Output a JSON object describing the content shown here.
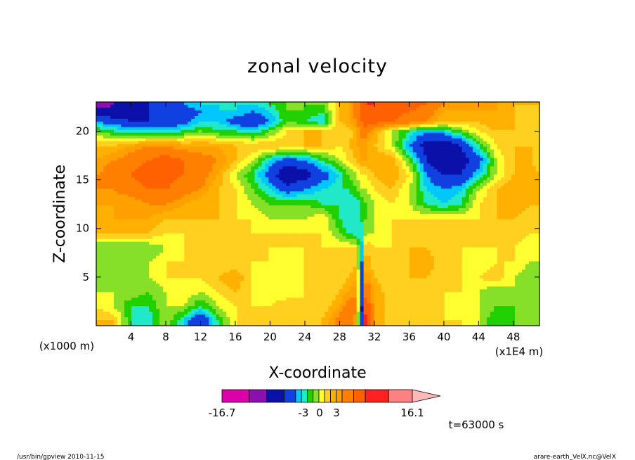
{
  "chart_data": {
    "type": "heatmap",
    "title": "zonal velocity",
    "xlabel": "X-coordinate",
    "ylabel": "Z-coordinate",
    "x_unit_left": "(x1000 m)",
    "x_unit_right": "(x1E4 m)",
    "xlim": [
      0,
      51
    ],
    "ylim": [
      0,
      23
    ],
    "x_ticks": [
      4,
      8,
      12,
      16,
      20,
      24,
      28,
      32,
      36,
      40,
      44,
      48
    ],
    "x_tick_labels": [
      "4",
      "8",
      "12",
      "16",
      "20",
      "24",
      "28",
      "32",
      "36",
      "40",
      "44",
      "48"
    ],
    "y_ticks": [
      5,
      10,
      15,
      20
    ],
    "y_tick_labels": [
      "5",
      "10",
      "15",
      "20"
    ],
    "colorbar": {
      "min_label": "-16.7",
      "max_label": "16.1",
      "mid_labels": [
        "-3",
        "0",
        "3"
      ],
      "levels": [
        -16.7,
        -12,
        -9,
        -6,
        -4,
        -3,
        -2,
        -1,
        0,
        1,
        2,
        3,
        4,
        6,
        8,
        12,
        16.1
      ],
      "colors": [
        "#dd00aa",
        "#8a10b0",
        "#0a10a8",
        "#1040e0",
        "#00c8ff",
        "#20e8c8",
        "#20d000",
        "#86e028",
        "#ffff30",
        "#ffd020",
        "#ffb000",
        "#ffa000",
        "#ff8000",
        "#ff6000",
        "#ff2020",
        "#ff8080"
      ],
      "extension_color": "#ffb8b8"
    },
    "field": {
      "x": [
        0,
        2,
        4,
        6,
        8,
        10,
        12,
        14,
        16,
        18,
        20,
        22,
        24,
        26,
        28,
        29,
        30,
        30.5,
        31,
        32,
        34,
        36,
        38,
        40,
        42,
        44,
        46,
        48,
        50,
        51
      ],
      "z": [
        0.5,
        2,
        3.5,
        5,
        6.5,
        8,
        9.5,
        11,
        12.5,
        14,
        15.5,
        17,
        18.5,
        20,
        21,
        22,
        22.8
      ],
      "u": [
        [
          2,
          2,
          -2,
          -3,
          0,
          -3,
          -6,
          -2,
          1,
          1,
          1,
          1,
          1,
          2,
          5,
          6,
          3,
          -8,
          10,
          3,
          1,
          1,
          2,
          1,
          1,
          0,
          -2,
          -1,
          -1,
          -1
        ],
        [
          1,
          0,
          -2,
          -2,
          0,
          0,
          -2,
          0,
          1,
          1,
          1,
          2,
          1,
          1,
          3,
          5,
          4,
          -8,
          8,
          3,
          1,
          1,
          2,
          1,
          0,
          0,
          -1,
          -1,
          -1,
          -1
        ],
        [
          0,
          0,
          0,
          -1,
          0,
          1,
          0,
          1,
          2,
          1,
          0,
          0,
          1,
          1,
          2,
          3,
          4,
          -6,
          6,
          3,
          1,
          1,
          1,
          1,
          1,
          0,
          -1,
          0,
          -1,
          -1
        ],
        [
          -1,
          -1,
          0,
          0,
          1,
          1,
          1,
          2,
          3,
          1,
          0,
          0,
          1,
          1,
          1,
          2,
          3,
          -6,
          4,
          2,
          1,
          2,
          2,
          1,
          1,
          1,
          2,
          0,
          -1,
          -1
        ],
        [
          -1,
          -1,
          -1,
          0,
          1,
          1,
          1,
          1,
          1,
          1,
          1,
          0,
          1,
          1,
          1,
          1,
          2,
          -5,
          3,
          1,
          1,
          2,
          3,
          1,
          1,
          0,
          1,
          1,
          0,
          0
        ],
        [
          -1,
          -1,
          -1,
          -1,
          0,
          1,
          1,
          1,
          1,
          1,
          1,
          1,
          1,
          1,
          1,
          1,
          1,
          -4,
          2,
          1,
          1,
          2,
          2,
          1,
          1,
          1,
          1,
          1,
          0,
          0
        ],
        [
          2,
          2,
          2,
          2,
          1,
          1,
          1,
          1,
          1,
          1,
          1,
          1,
          1,
          1,
          -1,
          -2,
          -3,
          -3,
          0,
          0,
          1,
          1,
          1,
          1,
          1,
          1,
          1,
          2,
          1,
          1
        ],
        [
          2,
          3,
          3,
          3,
          2,
          2,
          2,
          2,
          1,
          1,
          0,
          0,
          0,
          1,
          -2,
          -3,
          -3,
          -2,
          -1,
          0,
          1,
          1,
          1,
          1,
          1,
          1,
          2,
          2,
          1,
          1
        ],
        [
          3,
          3,
          3,
          4,
          4,
          3,
          2,
          2,
          1,
          0,
          -1,
          -1,
          -1,
          -2,
          -2,
          -3,
          -3,
          -2,
          -1,
          0,
          1,
          0,
          -2,
          -3,
          -2,
          1,
          2,
          3,
          2,
          2
        ],
        [
          4,
          4,
          5,
          6,
          6,
          5,
          4,
          2,
          1,
          -1,
          -3,
          -5,
          -4,
          -3,
          -2,
          -2,
          -1,
          0,
          0,
          1,
          2,
          0,
          -3,
          -4,
          -3,
          0,
          2,
          3,
          3,
          2
        ],
        [
          4,
          5,
          6,
          7,
          7,
          6,
          5,
          3,
          0,
          -2,
          -5,
          -8,
          -7,
          -5,
          -3,
          -1,
          0,
          1,
          1,
          2,
          3,
          1,
          -4,
          -6,
          -6,
          -3,
          0,
          2,
          3,
          2
        ],
        [
          3,
          4,
          5,
          6,
          7,
          6,
          5,
          4,
          2,
          0,
          -3,
          -5,
          -4,
          -2,
          0,
          1,
          2,
          3,
          3,
          3,
          3,
          -1,
          -6,
          -8,
          -7,
          -5,
          0,
          2,
          2,
          1
        ],
        [
          2,
          2,
          3,
          4,
          4,
          3,
          3,
          3,
          2,
          2,
          2,
          2,
          2,
          2,
          1,
          2,
          3,
          3,
          3,
          2,
          0,
          -4,
          -7,
          -8,
          -6,
          -2,
          1,
          2,
          2,
          1
        ],
        [
          -1,
          -2,
          -3,
          -3,
          -3,
          -2,
          -1,
          -2,
          -2,
          -3,
          -1,
          1,
          2,
          2,
          1,
          1,
          3,
          5,
          5,
          3,
          0,
          -2,
          -4,
          -3,
          -1,
          1,
          2,
          2,
          1,
          1
        ],
        [
          -4,
          -5,
          -6,
          -6,
          -6,
          -5,
          -3,
          -3,
          -5,
          -6,
          -4,
          -1,
          -2,
          -3,
          2,
          3,
          4,
          6,
          7,
          7,
          6,
          5,
          4,
          2,
          2,
          2,
          3,
          2,
          1,
          1
        ],
        [
          -7,
          -8,
          -7,
          -6,
          -6,
          -5,
          -4,
          -3,
          -3,
          -4,
          -3,
          -1,
          -1,
          -2,
          2,
          3,
          5,
          6,
          7,
          7,
          7,
          6,
          5,
          3,
          3,
          3,
          3,
          2,
          1,
          1
        ],
        [
          -12,
          -9,
          -7,
          -6,
          -5,
          -4,
          -3,
          -3,
          -3,
          -3,
          -2,
          -1,
          -1,
          -1,
          2,
          3,
          5,
          7,
          8,
          8,
          7,
          7,
          6,
          4,
          3,
          3,
          3,
          2,
          2,
          2
        ]
      ]
    }
  },
  "annotations": {
    "time_label": "t=63000 s",
    "footer_left": "/usr/bin/gpview   2010-11-15",
    "footer_right": "arare-earth_VelX.nc@VelX"
  }
}
